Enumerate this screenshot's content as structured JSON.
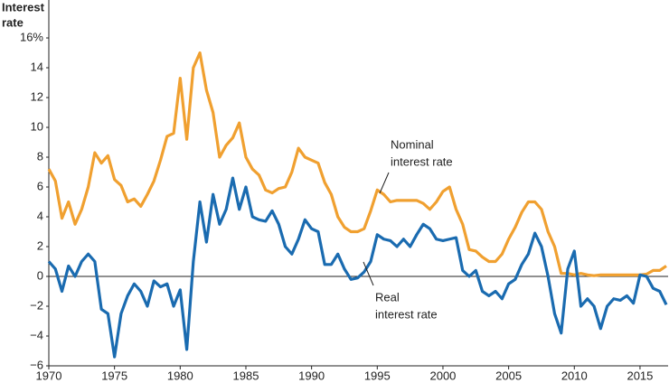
{
  "chart_data": {
    "type": "line",
    "y_label": [
      "Interest",
      "rate"
    ],
    "x": [
      1970,
      1970.5,
      1971,
      1971.5,
      1972,
      1972.5,
      1973,
      1973.5,
      1974,
      1974.5,
      1975,
      1975.5,
      1976,
      1976.5,
      1977,
      1977.5,
      1978,
      1978.5,
      1979,
      1979.5,
      1980,
      1980.5,
      1981,
      1981.5,
      1982,
      1982.5,
      1983,
      1983.5,
      1984,
      1984.5,
      1985,
      1985.5,
      1986,
      1986.5,
      1987,
      1987.5,
      1988,
      1988.5,
      1989,
      1989.5,
      1990,
      1990.5,
      1991,
      1991.5,
      1992,
      1992.5,
      1993,
      1993.5,
      1994,
      1994.5,
      1995,
      1995.5,
      1996,
      1996.5,
      1997,
      1997.5,
      1998,
      1998.5,
      1999,
      1999.5,
      2000,
      2000.5,
      2001,
      2001.5,
      2002,
      2002.5,
      2003,
      2003.5,
      2004,
      2004.5,
      2005,
      2005.5,
      2006,
      2006.5,
      2007,
      2007.5,
      2008,
      2008.5,
      2009,
      2009.5,
      2010,
      2010.5,
      2011,
      2011.5,
      2012,
      2012.5,
      2013,
      2013.5,
      2014,
      2014.5,
      2015,
      2015.5,
      2016,
      2016.5,
      2017
    ],
    "series": [
      {
        "name": "Nominal interest rate",
        "color": "#f0a030",
        "values": [
          7.2,
          6.4,
          3.9,
          5.0,
          3.5,
          4.5,
          6.0,
          8.3,
          7.6,
          8.1,
          6.5,
          6.1,
          5.0,
          5.2,
          4.7,
          5.5,
          6.4,
          7.8,
          9.4,
          9.6,
          13.3,
          9.2,
          14.0,
          15.0,
          12.5,
          11.0,
          8.0,
          8.8,
          9.3,
          10.3,
          8.0,
          7.2,
          6.8,
          5.8,
          5.6,
          5.9,
          6.0,
          7.0,
          8.6,
          8.0,
          7.8,
          7.6,
          6.3,
          5.5,
          4.0,
          3.3,
          3.0,
          3.0,
          3.2,
          4.4,
          5.8,
          5.5,
          5.0,
          5.1,
          5.1,
          5.1,
          5.1,
          4.9,
          4.5,
          5.0,
          5.7,
          6.0,
          4.5,
          3.5,
          1.8,
          1.7,
          1.3,
          1.0,
          1.0,
          1.5,
          2.5,
          3.3,
          4.3,
          5.0,
          5.0,
          4.5,
          3.0,
          2.0,
          0.2,
          0.2,
          0.1,
          0.2,
          0.1,
          0.05,
          0.1,
          0.1,
          0.1,
          0.1,
          0.1,
          0.1,
          0.1,
          0.15,
          0.4,
          0.4,
          0.7
        ]
      },
      {
        "name": "Real interest rate",
        "color": "#1a6bb0",
        "values": [
          1.0,
          0.5,
          -1.0,
          0.7,
          0.0,
          1.0,
          1.5,
          1.0,
          -2.2,
          -2.5,
          -5.4,
          -2.5,
          -1.3,
          -0.5,
          -1.0,
          -2.0,
          -0.3,
          -0.7,
          -0.5,
          -2.0,
          -0.9,
          -4.9,
          1.0,
          5.0,
          2.3,
          5.5,
          3.5,
          4.5,
          6.6,
          4.5,
          6.0,
          4.0,
          3.8,
          3.7,
          4.4,
          3.5,
          2.0,
          1.5,
          2.5,
          3.8,
          3.2,
          3.0,
          0.8,
          0.8,
          1.5,
          0.5,
          -0.2,
          -0.1,
          0.3,
          1.0,
          2.8,
          2.5,
          2.4,
          2.0,
          2.5,
          2.0,
          2.8,
          3.5,
          3.2,
          2.5,
          2.4,
          2.5,
          2.6,
          0.4,
          0.0,
          0.4,
          -1.0,
          -1.3,
          -1.0,
          -1.5,
          -0.5,
          -0.2,
          0.8,
          1.5,
          2.9,
          2.0,
          0.0,
          -2.5,
          -3.8,
          0.5,
          1.7,
          -2.0,
          -1.5,
          -2.0,
          -3.5,
          -2.0,
          -1.5,
          -1.6,
          -1.3,
          -1.8,
          0.1,
          0.0,
          -0.8,
          -1.0,
          -1.9
        ]
      }
    ],
    "annotations": [
      {
        "lines": [
          "Nominal",
          "interest rate"
        ],
        "series": 0
      },
      {
        "lines": [
          "Real",
          "interest rate"
        ],
        "series": 1
      }
    ],
    "xlim": [
      1970,
      2017
    ],
    "xticks": [
      1970,
      1975,
      1980,
      1985,
      1990,
      1995,
      2000,
      2005,
      2010,
      2015
    ],
    "ylim": [
      -6,
      16
    ],
    "yticks": [
      {
        "value": -6,
        "label": "−6"
      },
      {
        "value": -4,
        "label": "−4"
      },
      {
        "value": -2,
        "label": "−2"
      },
      0,
      2,
      4,
      6,
      8,
      10,
      12,
      14,
      {
        "value": 16,
        "label": "16%"
      }
    ],
    "grid": false
  }
}
